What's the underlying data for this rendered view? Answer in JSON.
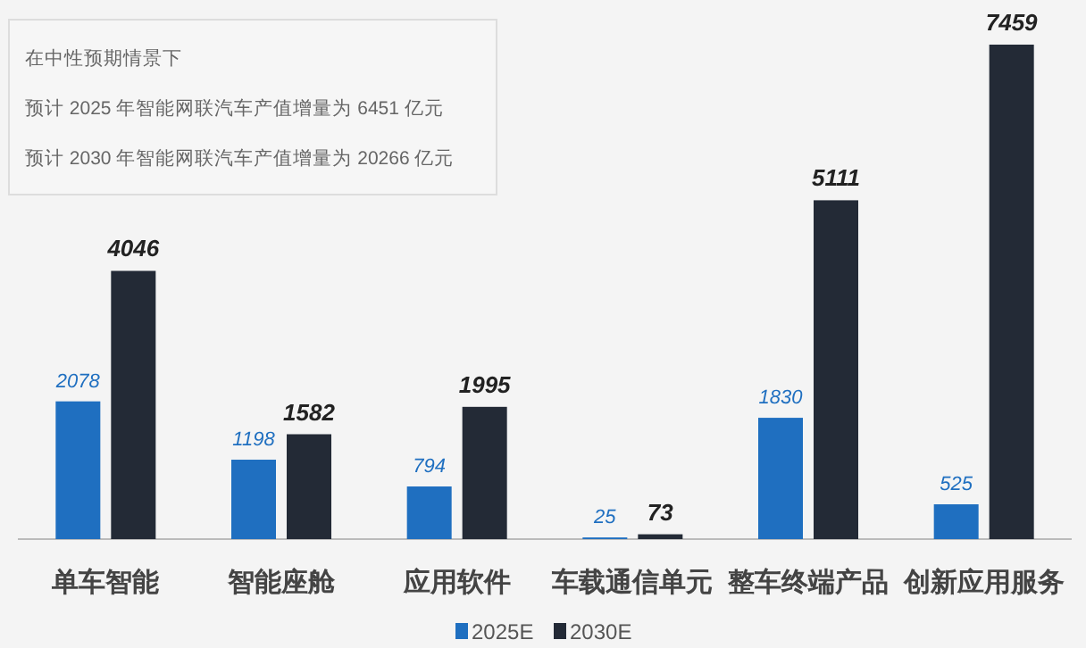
{
  "chart_data": {
    "type": "bar",
    "categories": [
      "单车智能",
      "智能座舱",
      "应用软件",
      "车载通信单元",
      "整车终端产品",
      "创新应用服务"
    ],
    "series": [
      {
        "name": "2025E",
        "color": "#1f6fc0",
        "values": [
          2078,
          1198,
          794,
          25,
          1830,
          525
        ]
      },
      {
        "name": "2030E",
        "color": "#232a36",
        "values": [
          4046,
          1582,
          1995,
          73,
          5111,
          7459
        ]
      }
    ],
    "data_labels": true,
    "legend": "bottom",
    "annotations": [
      "在中性预期情景下",
      "预计 2025 年智能网联汽车产值增量为 6451 亿元",
      "预计 2030 年智能网联汽车产值增量为 20266 亿元"
    ]
  }
}
